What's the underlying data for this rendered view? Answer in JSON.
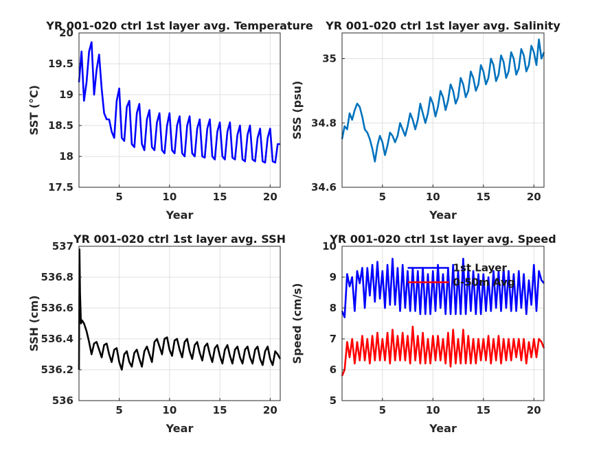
{
  "chart_data": [
    {
      "type": "line",
      "title": "YR 001-020 ctrl 1st layer avg. Temperature",
      "xlabel": "Year",
      "ylabel": "SST (°C)",
      "xlim": [
        1,
        21
      ],
      "ylim": [
        17.5,
        20
      ],
      "xticks": [
        5,
        10,
        15,
        20
      ],
      "yticks": [
        17.5,
        18,
        18.5,
        19,
        19.5,
        20
      ],
      "ytick_labels": [
        "17.5",
        "18",
        "18.5",
        "19",
        "19.5",
        "20"
      ],
      "grid": true,
      "series": [
        {
          "color": "#0000ff",
          "x": [
            1.0,
            1.25,
            1.5,
            1.75,
            2.0,
            2.25,
            2.5,
            2.75,
            3.0,
            3.25,
            3.5,
            3.75,
            4.0,
            4.25,
            4.5,
            4.75,
            5.0,
            5.25,
            5.5,
            5.75,
            6.0,
            6.25,
            6.5,
            6.75,
            7.0,
            7.25,
            7.5,
            7.75,
            8.0,
            8.25,
            8.5,
            8.75,
            9.0,
            9.25,
            9.5,
            9.75,
            10.0,
            10.25,
            10.5,
            10.75,
            11.0,
            11.25,
            11.5,
            11.75,
            12.0,
            12.25,
            12.5,
            12.75,
            13.0,
            13.25,
            13.5,
            13.75,
            14.0,
            14.25,
            14.5,
            14.75,
            15.0,
            15.25,
            15.5,
            15.75,
            16.0,
            16.25,
            16.5,
            16.75,
            17.0,
            17.25,
            17.5,
            17.75,
            18.0,
            18.25,
            18.5,
            18.75,
            19.0,
            19.25,
            19.5,
            19.75,
            20.0,
            20.25,
            20.5,
            20.75,
            21.0
          ],
          "y": [
            19.2,
            19.7,
            18.9,
            19.2,
            19.7,
            19.85,
            19.0,
            19.4,
            19.65,
            19.1,
            18.7,
            18.6,
            18.6,
            18.4,
            18.3,
            18.9,
            19.1,
            18.3,
            18.25,
            18.8,
            18.9,
            18.2,
            18.15,
            18.7,
            18.85,
            18.2,
            18.1,
            18.6,
            18.75,
            18.15,
            18.1,
            18.55,
            18.7,
            18.1,
            18.05,
            18.5,
            18.7,
            18.1,
            18.05,
            18.5,
            18.65,
            18.05,
            18.0,
            18.5,
            18.65,
            18.05,
            18.0,
            18.45,
            18.6,
            18.0,
            17.98,
            18.45,
            18.6,
            18.0,
            17.95,
            18.4,
            18.55,
            18.0,
            17.95,
            18.4,
            18.55,
            17.98,
            17.95,
            18.35,
            18.5,
            17.95,
            17.92,
            18.35,
            18.5,
            17.95,
            17.92,
            18.3,
            18.45,
            17.92,
            17.9,
            18.3,
            18.45,
            17.92,
            17.9,
            18.2,
            18.2
          ]
        }
      ]
    },
    {
      "type": "line",
      "title": "YR 001-020 ctrl 1st layer avg. Salinity",
      "xlabel": "Year",
      "ylabel": "SSS (psu)",
      "xlim": [
        1,
        21
      ],
      "ylim": [
        34.6,
        35.08
      ],
      "xticks": [
        5,
        10,
        15,
        20
      ],
      "yticks": [
        34.6,
        34.8,
        35
      ],
      "ytick_labels": [
        "34.6",
        "34.8",
        "35"
      ],
      "grid": true,
      "series": [
        {
          "color": "#0072bd",
          "x": [
            1.0,
            1.25,
            1.5,
            1.75,
            2.0,
            2.25,
            2.5,
            2.75,
            3.0,
            3.25,
            3.5,
            3.75,
            4.0,
            4.25,
            4.5,
            4.75,
            5.0,
            5.25,
            5.5,
            5.75,
            6.0,
            6.25,
            6.5,
            6.75,
            7.0,
            7.25,
            7.5,
            7.75,
            8.0,
            8.25,
            8.5,
            8.75,
            9.0,
            9.25,
            9.5,
            9.75,
            10.0,
            10.25,
            10.5,
            10.75,
            11.0,
            11.25,
            11.5,
            11.75,
            12.0,
            12.25,
            12.5,
            12.75,
            13.0,
            13.25,
            13.5,
            13.75,
            14.0,
            14.25,
            14.5,
            14.75,
            15.0,
            15.25,
            15.5,
            15.75,
            16.0,
            16.25,
            16.5,
            16.75,
            17.0,
            17.25,
            17.5,
            17.75,
            18.0,
            18.25,
            18.5,
            18.75,
            19.0,
            19.25,
            19.5,
            19.75,
            20.0,
            20.25,
            20.5,
            20.75,
            21.0
          ],
          "y": [
            34.75,
            34.79,
            34.78,
            34.83,
            34.81,
            34.84,
            34.86,
            34.85,
            34.82,
            34.78,
            34.77,
            34.75,
            34.72,
            34.68,
            34.73,
            34.76,
            34.74,
            34.7,
            34.73,
            34.77,
            34.76,
            34.74,
            34.76,
            34.8,
            34.78,
            34.76,
            34.79,
            34.83,
            34.81,
            34.78,
            34.81,
            34.86,
            34.83,
            34.8,
            34.83,
            34.88,
            34.86,
            34.82,
            34.85,
            34.9,
            34.88,
            34.84,
            34.87,
            34.92,
            34.9,
            34.86,
            34.88,
            34.94,
            34.92,
            34.88,
            34.9,
            34.96,
            34.94,
            34.9,
            34.92,
            34.98,
            34.96,
            34.92,
            34.94,
            35.0,
            34.98,
            34.93,
            34.95,
            35.01,
            34.99,
            34.94,
            34.96,
            35.02,
            35.0,
            34.95,
            34.97,
            35.03,
            35.01,
            34.96,
            34.98,
            35.04,
            35.02,
            34.98,
            35.06,
            35.0,
            35.02
          ]
        }
      ]
    },
    {
      "type": "line",
      "title": "YR 001-020 ctrl 1st layer avg. SSH",
      "xlabel": "Year",
      "ylabel": "SSH (cm)",
      "xlim": [
        1,
        21
      ],
      "ylim": [
        536,
        537
      ],
      "xticks": [
        5,
        10,
        15,
        20
      ],
      "yticks": [
        536,
        536.2,
        536.4,
        536.6,
        536.8,
        537
      ],
      "ytick_labels": [
        "536",
        "536.2",
        "536.4",
        "536.6",
        "536.8",
        "537"
      ],
      "grid": true,
      "series": [
        {
          "color": "#000000",
          "x": [
            1.0,
            1.05,
            1.1,
            1.2,
            1.3,
            1.5,
            1.75,
            2.0,
            2.25,
            2.5,
            2.75,
            3.0,
            3.25,
            3.5,
            3.75,
            4.0,
            4.25,
            4.5,
            4.75,
            5.0,
            5.25,
            5.5,
            5.75,
            6.0,
            6.25,
            6.5,
            6.75,
            7.0,
            7.25,
            7.5,
            7.75,
            8.0,
            8.25,
            8.5,
            8.75,
            9.0,
            9.25,
            9.5,
            9.75,
            10.0,
            10.25,
            10.5,
            10.75,
            11.0,
            11.25,
            11.5,
            11.75,
            12.0,
            12.25,
            12.5,
            12.75,
            13.0,
            13.25,
            13.5,
            13.75,
            14.0,
            14.25,
            14.5,
            14.75,
            15.0,
            15.25,
            15.5,
            15.75,
            16.0,
            16.25,
            16.5,
            16.75,
            17.0,
            17.25,
            17.5,
            17.75,
            18.0,
            18.25,
            18.5,
            18.75,
            19.0,
            19.25,
            19.5,
            19.75,
            20.0,
            20.25,
            20.5,
            20.75,
            21.0
          ],
          "y": [
            536.2,
            536.98,
            536.7,
            536.5,
            536.52,
            536.5,
            536.45,
            536.38,
            536.3,
            536.37,
            536.38,
            536.33,
            536.28,
            536.36,
            536.37,
            536.3,
            536.25,
            536.33,
            536.34,
            536.25,
            536.2,
            536.3,
            536.32,
            536.25,
            536.22,
            536.31,
            536.33,
            536.27,
            536.22,
            536.32,
            536.35,
            536.3,
            536.25,
            536.38,
            536.4,
            536.35,
            536.3,
            536.4,
            536.41,
            536.33,
            536.29,
            536.39,
            536.4,
            536.33,
            536.28,
            536.38,
            536.4,
            536.32,
            536.27,
            536.36,
            536.38,
            536.31,
            536.26,
            536.35,
            536.37,
            536.3,
            536.25,
            536.34,
            536.36,
            536.29,
            536.24,
            536.33,
            536.36,
            536.29,
            536.24,
            536.33,
            536.35,
            536.28,
            536.24,
            536.33,
            536.35,
            536.28,
            536.24,
            536.33,
            536.35,
            536.27,
            536.23,
            536.32,
            536.35,
            536.27,
            536.23,
            536.32,
            536.3,
            536.27
          ]
        }
      ]
    },
    {
      "type": "line",
      "title": "YR 001-020 ctrl 1st layer avg. Speed",
      "xlabel": "Year",
      "ylabel": "Speed (cm/s)",
      "xlim": [
        1,
        21
      ],
      "ylim": [
        5,
        10
      ],
      "xticks": [
        5,
        10,
        15,
        20
      ],
      "yticks": [
        5,
        6,
        7,
        8,
        9,
        10
      ],
      "ytick_labels": [
        "5",
        "6",
        "7",
        "8",
        "9",
        "10"
      ],
      "grid": true,
      "legend_position": "top-right",
      "series": [
        {
          "name": "1st Layer",
          "color": "#0000ff",
          "x": [
            1.0,
            1.25,
            1.5,
            1.75,
            2.0,
            2.25,
            2.5,
            2.75,
            3.0,
            3.25,
            3.5,
            3.75,
            4.0,
            4.25,
            4.5,
            4.75,
            5.0,
            5.25,
            5.5,
            5.75,
            6.0,
            6.25,
            6.5,
            6.75,
            7.0,
            7.25,
            7.5,
            7.75,
            8.0,
            8.25,
            8.5,
            8.75,
            9.0,
            9.25,
            9.5,
            9.75,
            10.0,
            10.25,
            10.5,
            10.75,
            11.0,
            11.25,
            11.5,
            11.75,
            12.0,
            12.25,
            12.5,
            12.75,
            13.0,
            13.25,
            13.5,
            13.75,
            14.0,
            14.25,
            14.5,
            14.75,
            15.0,
            15.25,
            15.5,
            15.75,
            16.0,
            16.25,
            16.5,
            16.75,
            17.0,
            17.25,
            17.5,
            17.75,
            18.0,
            18.25,
            18.5,
            18.75,
            19.0,
            19.25,
            19.5,
            19.75,
            20.0,
            20.25,
            20.5,
            20.75,
            21.0
          ],
          "y": [
            7.9,
            7.7,
            9.1,
            8.7,
            9.0,
            7.9,
            9.2,
            8.8,
            9.3,
            8.0,
            9.3,
            8.4,
            9.4,
            8.2,
            9.5,
            8.3,
            9.2,
            8.0,
            9.4,
            8.1,
            9.6,
            8.1,
            9.3,
            7.9,
            9.4,
            8.0,
            9.2,
            7.9,
            9.3,
            7.9,
            9.2,
            7.8,
            9.3,
            7.8,
            9.1,
            7.8,
            9.2,
            7.9,
            9.4,
            8.0,
            9.1,
            7.8,
            9.3,
            7.8,
            9.4,
            7.8,
            9.2,
            7.8,
            9.6,
            7.8,
            9.3,
            7.9,
            9.2,
            7.8,
            9.1,
            7.8,
            9.1,
            7.9,
            9.0,
            7.9,
            9.2,
            8.0,
            9.2,
            7.9,
            9.3,
            8.0,
            9.2,
            7.9,
            9.1,
            7.9,
            9.2,
            8.0,
            9.1,
            7.8,
            8.9,
            8.1,
            9.4,
            7.9,
            9.2,
            8.9,
            8.8
          ]
        },
        {
          "name": "0-50m Avg",
          "color": "#ff0000",
          "x": [
            1.0,
            1.25,
            1.5,
            1.75,
            2.0,
            2.25,
            2.5,
            2.75,
            3.0,
            3.25,
            3.5,
            3.75,
            4.0,
            4.25,
            4.5,
            4.75,
            5.0,
            5.25,
            5.5,
            5.75,
            6.0,
            6.25,
            6.5,
            6.75,
            7.0,
            7.25,
            7.5,
            7.75,
            8.0,
            8.25,
            8.5,
            8.75,
            9.0,
            9.25,
            9.5,
            9.75,
            10.0,
            10.25,
            10.5,
            10.75,
            11.0,
            11.25,
            11.5,
            11.75,
            12.0,
            12.25,
            12.5,
            12.75,
            13.0,
            13.25,
            13.5,
            13.75,
            14.0,
            14.25,
            14.5,
            14.75,
            15.0,
            15.25,
            15.5,
            15.75,
            16.0,
            16.25,
            16.5,
            16.75,
            17.0,
            17.25,
            17.5,
            17.75,
            18.0,
            18.25,
            18.5,
            18.75,
            19.0,
            19.25,
            19.5,
            19.75,
            20.0,
            20.25,
            20.5,
            20.75,
            21.0
          ],
          "y": [
            5.8,
            6.0,
            6.9,
            6.4,
            7.0,
            6.2,
            6.9,
            6.3,
            7.1,
            6.3,
            7.0,
            6.2,
            7.1,
            6.3,
            7.2,
            6.3,
            7.0,
            6.3,
            7.2,
            6.2,
            7.3,
            6.3,
            7.1,
            6.3,
            7.2,
            6.3,
            7.1,
            6.2,
            7.4,
            6.3,
            7.1,
            6.2,
            7.2,
            6.2,
            7.0,
            6.2,
            7.1,
            6.3,
            7.1,
            6.3,
            7.0,
            6.2,
            7.2,
            6.1,
            7.3,
            6.2,
            7.0,
            6.2,
            7.3,
            6.2,
            7.1,
            6.2,
            7.0,
            6.2,
            7.0,
            6.3,
            7.0,
            6.3,
            7.1,
            6.2,
            7.0,
            6.3,
            7.1,
            6.2,
            7.0,
            6.3,
            7.0,
            6.3,
            7.0,
            6.4,
            7.0,
            6.3,
            7.0,
            6.2,
            6.9,
            6.4,
            7.0,
            6.4,
            7.0,
            6.9,
            6.7
          ]
        }
      ]
    }
  ]
}
